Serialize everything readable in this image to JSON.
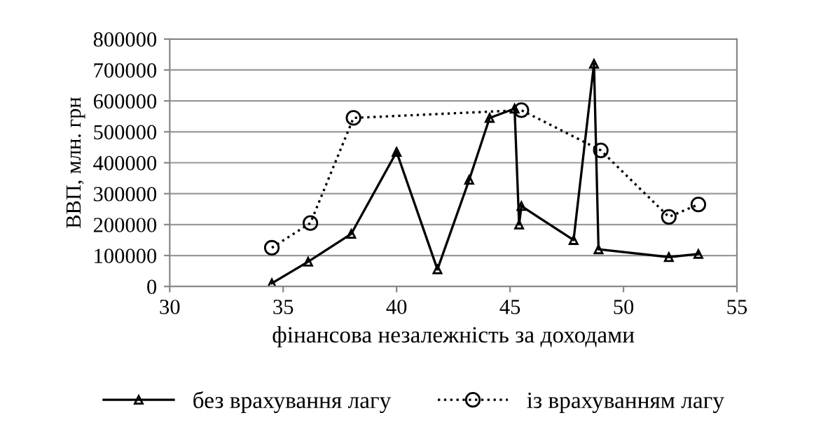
{
  "chart_data": {
    "type": "line",
    "xlabel": "фінансова незалежність за доходами",
    "ylabel": "ВВП, млн. грн",
    "xlim": [
      30,
      55
    ],
    "xticks": [
      30,
      35,
      40,
      45,
      50,
      55
    ],
    "ylim": [
      0,
      800000
    ],
    "yticks": [
      0,
      100000,
      200000,
      300000,
      400000,
      500000,
      600000,
      700000,
      800000
    ],
    "grid": "y",
    "legend": "bottom",
    "series": [
      {
        "name": "без врахування лагу",
        "color": "#000000",
        "marker": "triangle",
        "line_style": "solid",
        "x": [
          34.5,
          36.1,
          38.0,
          40.0,
          41.8,
          43.2,
          44.1,
          45.2,
          45.4,
          45.5,
          47.8,
          48.7,
          48.9,
          52.0,
          53.3
        ],
        "values": [
          10000,
          80000,
          170000,
          435000,
          55000,
          345000,
          545000,
          575000,
          200000,
          260000,
          150000,
          720000,
          120000,
          95000,
          105000
        ]
      },
      {
        "name": "із врахуванням лагу",
        "color": "#000000",
        "marker": "circle",
        "line_style": "dotted",
        "x": [
          34.5,
          36.2,
          38.1,
          45.5,
          49.0,
          52.0,
          53.3
        ],
        "values": [
          125000,
          205000,
          545000,
          570000,
          440000,
          225000,
          265000
        ]
      }
    ]
  }
}
